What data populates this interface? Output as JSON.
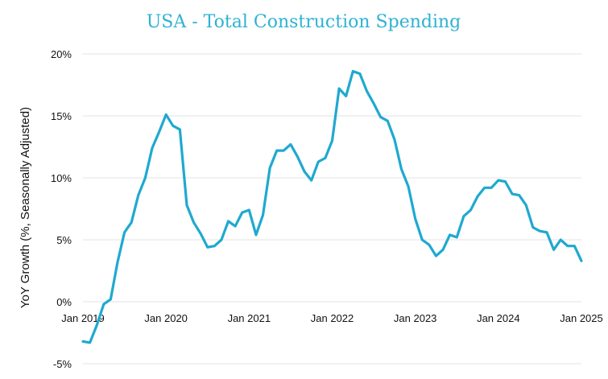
{
  "chart_data": {
    "type": "line",
    "title": "USA - Total Construction Spending",
    "xlabel": "",
    "ylabel": "YoY Growth (%, Seasonally Adjusted)",
    "ylim": [
      -5,
      20
    ],
    "y_ticks": [
      {
        "value": -5,
        "label": "-5%"
      },
      {
        "value": 0,
        "label": "0%"
      },
      {
        "value": 5,
        "label": "5%"
      },
      {
        "value": 10,
        "label": "10%"
      },
      {
        "value": 15,
        "label": "15%"
      },
      {
        "value": 20,
        "label": "20%"
      }
    ],
    "x_ticks": [
      {
        "value": "2019-01",
        "label": "Jan 2019"
      },
      {
        "value": "2020-01",
        "label": "Jan 2020"
      },
      {
        "value": "2021-01",
        "label": "Jan 2021"
      },
      {
        "value": "2022-01",
        "label": "Jan 2022"
      },
      {
        "value": "2023-01",
        "label": "Jan 2023"
      },
      {
        "value": "2024-01",
        "label": "Jan 2024"
      },
      {
        "value": "2025-01",
        "label": "Jan 2025"
      }
    ],
    "grid": "horizontal",
    "line_color": "#1fa9d0",
    "x": [
      "2019-01",
      "2019-02",
      "2019-03",
      "2019-04",
      "2019-05",
      "2019-06",
      "2019-07",
      "2019-08",
      "2019-09",
      "2019-10",
      "2019-11",
      "2019-12",
      "2020-01",
      "2020-02",
      "2020-03",
      "2020-04",
      "2020-05",
      "2020-06",
      "2020-07",
      "2020-08",
      "2020-09",
      "2020-10",
      "2020-11",
      "2020-12",
      "2021-01",
      "2021-02",
      "2021-03",
      "2021-04",
      "2021-05",
      "2021-06",
      "2021-07",
      "2021-08",
      "2021-09",
      "2021-10",
      "2021-11",
      "2021-12",
      "2022-01",
      "2022-02",
      "2022-03",
      "2022-04",
      "2022-05",
      "2022-06",
      "2022-07",
      "2022-08",
      "2022-09",
      "2022-10",
      "2022-11",
      "2022-12",
      "2023-01",
      "2023-02",
      "2023-03",
      "2023-04",
      "2023-05",
      "2023-06",
      "2023-07",
      "2023-08",
      "2023-09",
      "2023-10",
      "2023-11",
      "2023-12",
      "2024-01",
      "2024-02",
      "2024-03",
      "2024-04",
      "2024-05",
      "2024-06",
      "2024-07",
      "2024-08",
      "2024-09",
      "2024-10",
      "2024-11",
      "2024-12",
      "2025-01"
    ],
    "series": [
      {
        "values": [
          -3.2,
          -3.3,
          -1.9,
          -0.2,
          0.2,
          3.2,
          5.6,
          6.4,
          8.6,
          10.0,
          12.4,
          13.7,
          15.1,
          14.2,
          13.9,
          7.8,
          6.4,
          5.5,
          4.4,
          4.5,
          5.0,
          6.5,
          6.1,
          7.2,
          7.4,
          5.4,
          7.0,
          10.8,
          12.2,
          12.2,
          12.7,
          11.7,
          10.5,
          9.8,
          11.3,
          11.6,
          13.0,
          17.2,
          16.6,
          18.6,
          18.4,
          17.0,
          16.0,
          14.9,
          14.6,
          13.1,
          10.7,
          9.3,
          6.7,
          5.0,
          4.6,
          3.7,
          4.2,
          5.4,
          5.2,
          6.9,
          7.4,
          8.5,
          9.2,
          9.2,
          9.8,
          9.7,
          8.7,
          8.6,
          7.8,
          6.0,
          5.7,
          5.6,
          4.2,
          5.0,
          4.5,
          4.5,
          3.3
        ]
      }
    ]
  }
}
